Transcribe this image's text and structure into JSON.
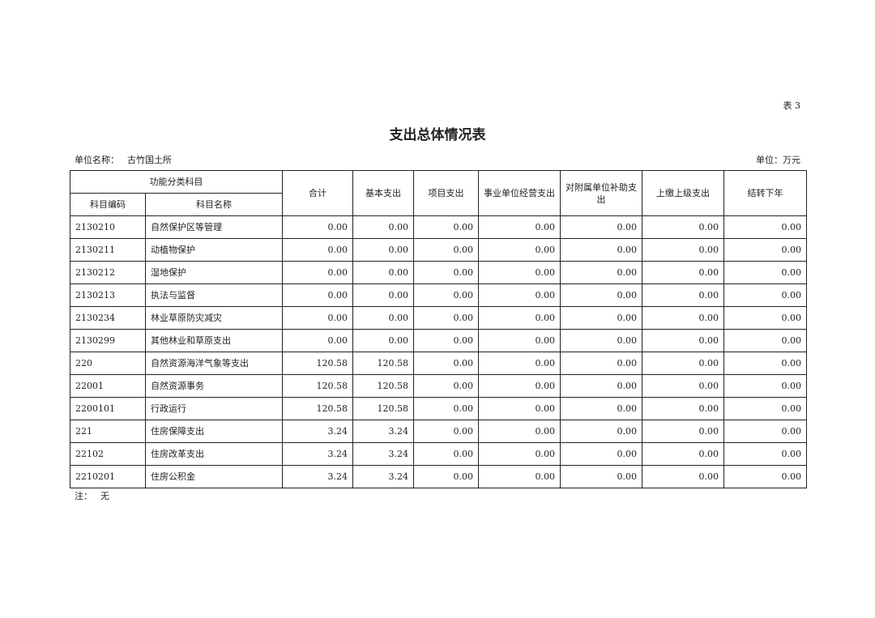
{
  "table_no": "表 3",
  "title": "支出总体情况表",
  "unit_name_label": "单位名称：",
  "unit_name": "古竹国土所",
  "unit": "单位：万元",
  "headers": {
    "group": "功能分类科目",
    "code": "科目编码",
    "name": "科目名称",
    "total": "合计",
    "basic": "基本支出",
    "project": "项目支出",
    "business": "事业单位经营支出",
    "subsidy": "对附属单位补助支出",
    "upper": "上缴上级支出",
    "carry": "结转下年"
  },
  "rows": [
    [
      "2130210",
      "自然保护区等管理",
      "0.00",
      "0.00",
      "0.00",
      "0.00",
      "0.00",
      "0.00",
      "0.00"
    ],
    [
      "2130211",
      "动植物保护",
      "0.00",
      "0.00",
      "0.00",
      "0.00",
      "0.00",
      "0.00",
      "0.00"
    ],
    [
      "2130212",
      "湿地保护",
      "0.00",
      "0.00",
      "0.00",
      "0.00",
      "0.00",
      "0.00",
      "0.00"
    ],
    [
      "2130213",
      "执法与监督",
      "0.00",
      "0.00",
      "0.00",
      "0.00",
      "0.00",
      "0.00",
      "0.00"
    ],
    [
      "2130234",
      "林业草原防灾减灾",
      "0.00",
      "0.00",
      "0.00",
      "0.00",
      "0.00",
      "0.00",
      "0.00"
    ],
    [
      "2130299",
      "其他林业和草原支出",
      "0.00",
      "0.00",
      "0.00",
      "0.00",
      "0.00",
      "0.00",
      "0.00"
    ],
    [
      "220",
      "自然资源海洋气象等支出",
      "120.58",
      "120.58",
      "0.00",
      "0.00",
      "0.00",
      "0.00",
      "0.00"
    ],
    [
      "22001",
      "自然资源事务",
      "120.58",
      "120.58",
      "0.00",
      "0.00",
      "0.00",
      "0.00",
      "0.00"
    ],
    [
      "2200101",
      "行政运行",
      "120.58",
      "120.58",
      "0.00",
      "0.00",
      "0.00",
      "0.00",
      "0.00"
    ],
    [
      "221",
      "住房保障支出",
      "3.24",
      "3.24",
      "0.00",
      "0.00",
      "0.00",
      "0.00",
      "0.00"
    ],
    [
      "22102",
      "住房改革支出",
      "3.24",
      "3.24",
      "0.00",
      "0.00",
      "0.00",
      "0.00",
      "0.00"
    ],
    [
      "2210201",
      "住房公积金",
      "3.24",
      "3.24",
      "0.00",
      "0.00",
      "0.00",
      "0.00",
      "0.00"
    ]
  ],
  "note_label": "注：",
  "note": "无"
}
